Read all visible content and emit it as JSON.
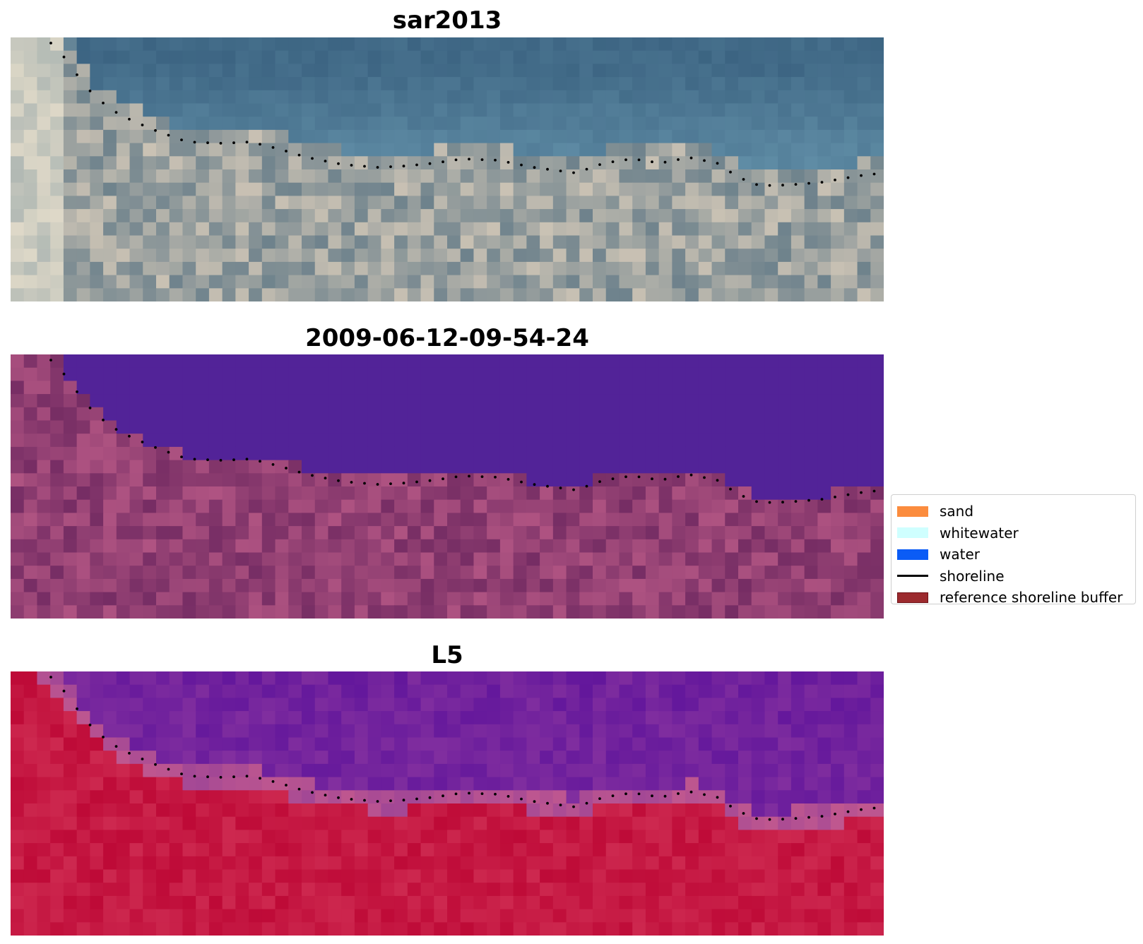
{
  "panels": [
    {
      "title": "sar2013"
    },
    {
      "title": "2009-06-12-09-54-24"
    },
    {
      "title": "L5"
    }
  ],
  "legend": {
    "items": [
      {
        "label": "sand",
        "type": "patch",
        "color": "#fb8c3e"
      },
      {
        "label": "whitewater",
        "type": "patch",
        "color": "#cfffff"
      },
      {
        "label": "water",
        "type": "patch",
        "color": "#0b5cf6"
      },
      {
        "label": "shoreline",
        "type": "line",
        "color": "#000000"
      },
      {
        "label": "reference shoreline buffer",
        "type": "patch",
        "color": "#9c2a2e"
      }
    ]
  }
}
